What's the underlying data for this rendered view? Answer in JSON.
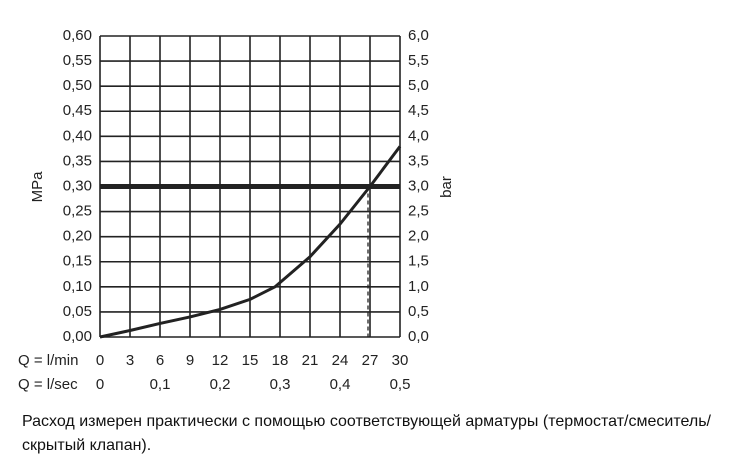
{
  "chart_data": {
    "type": "line",
    "caption": "Расход измерен практически с помощью соответствующей арматуры (термостат/смеситель/скрытый клапан).",
    "ylabel": "MPa",
    "y2label": "bar",
    "xlabel": "Q = l/min",
    "x2label": "Q = l/sec",
    "xlim": [
      0,
      30
    ],
    "xticks": [
      0,
      3,
      6,
      9,
      12,
      15,
      18,
      21,
      24,
      27,
      30
    ],
    "x2lim": [
      0,
      0.5
    ],
    "x2ticks": [
      0,
      {
        "value": 0.1,
        "label": "0,1"
      },
      {
        "value": 0.2,
        "label": "0,2"
      },
      {
        "value": 0.3,
        "label": "0,3"
      },
      {
        "value": 0.4,
        "label": "0,4"
      },
      {
        "value": 0.5,
        "label": "0,5"
      }
    ],
    "ylim": [
      0,
      0.6
    ],
    "yticks": [
      {
        "value": 0,
        "label": "0,00"
      },
      {
        "value": 0.05,
        "label": "0,05"
      },
      {
        "value": 0.1,
        "label": "0,10"
      },
      {
        "value": 0.15,
        "label": "0,15"
      },
      {
        "value": 0.2,
        "label": "0,20"
      },
      {
        "value": 0.25,
        "label": "0,25"
      },
      {
        "value": 0.3,
        "label": "0,30"
      },
      {
        "value": 0.35,
        "label": "0,35"
      },
      {
        "value": 0.4,
        "label": "0,40"
      },
      {
        "value": 0.45,
        "label": "0,45"
      },
      {
        "value": 0.5,
        "label": "0,50"
      },
      {
        "value": 0.55,
        "label": "0,55"
      },
      {
        "value": 0.6,
        "label": "0,60"
      }
    ],
    "y2lim": [
      0,
      6
    ],
    "y2ticks": [
      {
        "value": 0,
        "label": "0,0"
      },
      {
        "value": 0.5,
        "label": "0,5"
      },
      {
        "value": 1,
        "label": "1,0"
      },
      {
        "value": 1.5,
        "label": "1,5"
      },
      {
        "value": 2,
        "label": "2,0"
      },
      {
        "value": 2.5,
        "label": "2,5"
      },
      {
        "value": 3,
        "label": "3,0"
      },
      {
        "value": 3.5,
        "label": "3,5"
      },
      {
        "value": 4,
        "label": "4,0"
      },
      {
        "value": 4.5,
        "label": "4,5"
      },
      {
        "value": 5,
        "label": "5,0"
      },
      {
        "value": 5.5,
        "label": "5,5"
      },
      {
        "value": 6,
        "label": "6,0"
      }
    ],
    "grid": true,
    "reference_line": 0.3,
    "marker_x": 26.8,
    "series": [
      {
        "color": "#222222",
        "x": [
          0,
          3,
          6,
          9,
          12,
          15,
          17.5,
          21,
          24,
          27,
          30
        ],
        "values": [
          0,
          0.013,
          0.027,
          0.04,
          0.055,
          0.075,
          0.1,
          0.16,
          0.225,
          0.3,
          0.38
        ]
      }
    ]
  }
}
